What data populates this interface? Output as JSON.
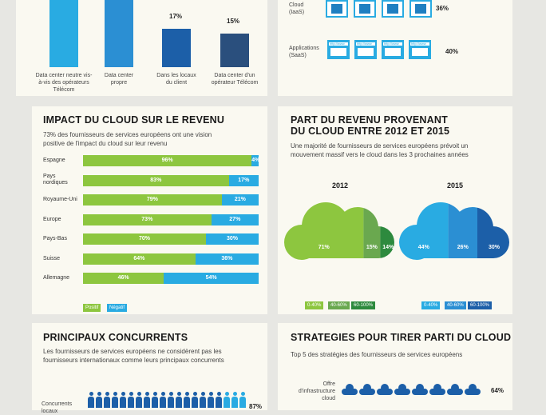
{
  "colors": {
    "green": "#8dc63f",
    "green_mid": "#6aa84f",
    "green_dark": "#2d8a3e",
    "blue": "#29abe2",
    "blue_mid": "#2b8fd3",
    "blue_dark": "#1c5fa8",
    "navy": "#2a4f7d"
  },
  "top_left": {
    "buildings": [
      {
        "label": "Data center neutre vis-à-vis des opérateurs Télécom",
        "pct": ""
      },
      {
        "label": "Data center propre",
        "pct": ""
      },
      {
        "label": "Dans les locaux du client",
        "pct": "17%"
      },
      {
        "label": "Data center d'un opérateur Télécom",
        "pct": "15%"
      }
    ]
  },
  "top_right": {
    "rows": [
      {
        "label": "Cloud (IaaS)",
        "pct": "36%"
      },
      {
        "label": "Applications (SaaS)",
        "pct": "40%"
      }
    ],
    "app_text": "http://www"
  },
  "impact": {
    "title": "IMPACT DU CLOUD SUR LE REVENU",
    "subtitle": "73% des fournisseurs de services européens ont une vision positive de l'impact du cloud sur leur revenu",
    "legend": {
      "positive": "Positif",
      "negative": "Négatif"
    }
  },
  "share": {
    "title_line1": "PART DU REVENU PROVENANT",
    "title_line2": "DU CLOUD ENTRE 2012 ET 2015",
    "subtitle": "Une majorité de fournisseurs de services européens prévoit un mouvement massif vers le cloud dans les 3 prochaines années",
    "legend": [
      "0-40%",
      "40-60%",
      "60-100%"
    ]
  },
  "competitors": {
    "title": "PRINCIPAUX CONCURRENTS",
    "subtitle": "Les fournisseurs de services européens ne considèrent pas les fournisseurs internationaux comme leurs principaux concurrents",
    "row_label": "Concurrents locaux",
    "pct": "87%"
  },
  "strategies": {
    "title": "STRATEGIES POUR TIRER PARTI DU CLOUD",
    "subtitle": "Top 5 des stratégies des fournisseurs de services européens",
    "row_label": "Offre d'infrastructure cloud",
    "pct": "64%"
  },
  "chart_data": [
    {
      "type": "bar",
      "title": "IMPACT DU CLOUD SUR LE REVENU",
      "categories": [
        "Espagne",
        "Pays nordiques",
        "Royaume-Uni",
        "Europe",
        "Pays-Bas",
        "Suisse",
        "Allemagne"
      ],
      "series": [
        {
          "name": "Positif",
          "values": [
            96,
            83,
            79,
            73,
            70,
            64,
            46
          ]
        },
        {
          "name": "Négatif",
          "values": [
            4,
            17,
            21,
            27,
            30,
            36,
            54
          ]
        }
      ],
      "stacked": true,
      "orientation": "horizontal",
      "xlim": [
        0,
        100
      ]
    },
    {
      "type": "pie",
      "title": "PART DU REVENU PROVENANT DU CLOUD ENTRE 2012 ET 2015",
      "charts": [
        {
          "label": "2012",
          "categories": [
            "0-40%",
            "40-60%",
            "60-100%"
          ],
          "values": [
            71,
            15,
            14
          ]
        },
        {
          "label": "2015",
          "categories": [
            "0-40%",
            "40-60%",
            "60-100%"
          ],
          "values": [
            44,
            26,
            30
          ]
        }
      ]
    }
  ]
}
